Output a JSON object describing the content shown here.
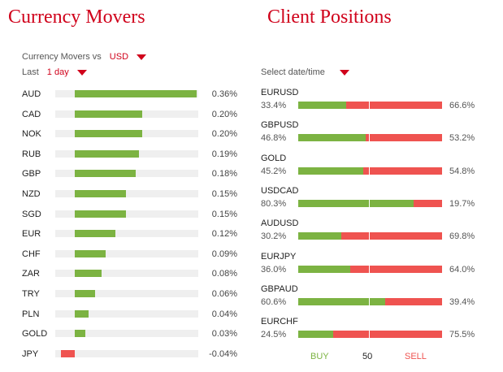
{
  "movers": {
    "title": "Currency Movers",
    "vs_label": "Currency Movers vs",
    "vs_value": "USD",
    "period_label": "Last",
    "period_value": "1 day",
    "rows": [
      {
        "currency": "AUD",
        "value": 0.36,
        "label": "0.36%"
      },
      {
        "currency": "CAD",
        "value": 0.2,
        "label": "0.20%"
      },
      {
        "currency": "NOK",
        "value": 0.2,
        "label": "0.20%"
      },
      {
        "currency": "RUB",
        "value": 0.19,
        "label": "0.19%"
      },
      {
        "currency": "GBP",
        "value": 0.18,
        "label": "0.18%"
      },
      {
        "currency": "NZD",
        "value": 0.15,
        "label": "0.15%"
      },
      {
        "currency": "SGD",
        "value": 0.15,
        "label": "0.15%"
      },
      {
        "currency": "EUR",
        "value": 0.12,
        "label": "0.12%"
      },
      {
        "currency": "CHF",
        "value": 0.09,
        "label": "0.09%"
      },
      {
        "currency": "ZAR",
        "value": 0.08,
        "label": "0.08%"
      },
      {
        "currency": "TRY",
        "value": 0.06,
        "label": "0.06%"
      },
      {
        "currency": "PLN",
        "value": 0.04,
        "label": "0.04%"
      },
      {
        "currency": "GOLD",
        "value": 0.03,
        "label": "0.03%"
      },
      {
        "currency": "JPY",
        "value": -0.04,
        "label": "-0.04%"
      }
    ]
  },
  "positions": {
    "title": "Client Positions",
    "select_label": "Select date/time",
    "rows": [
      {
        "pair": "EURUSD",
        "buy": 33.4,
        "sell": 66.6,
        "buy_label": "33.4%",
        "sell_label": "66.6%"
      },
      {
        "pair": "GBPUSD",
        "buy": 46.8,
        "sell": 53.2,
        "buy_label": "46.8%",
        "sell_label": "53.2%"
      },
      {
        "pair": "GOLD",
        "buy": 45.2,
        "sell": 54.8,
        "buy_label": "45.2%",
        "sell_label": "54.8%"
      },
      {
        "pair": "USDCAD",
        "buy": 80.3,
        "sell": 19.7,
        "buy_label": "80.3%",
        "sell_label": "19.7%"
      },
      {
        "pair": "AUDUSD",
        "buy": 30.2,
        "sell": 69.8,
        "buy_label": "30.2%",
        "sell_label": "69.8%"
      },
      {
        "pair": "EURJPY",
        "buy": 36.0,
        "sell": 64.0,
        "buy_label": "36.0%",
        "sell_label": "64.0%"
      },
      {
        "pair": "GBPAUD",
        "buy": 60.6,
        "sell": 39.4,
        "buy_label": "60.6%",
        "sell_label": "39.4%"
      },
      {
        "pair": "EURCHF",
        "buy": 24.5,
        "sell": 75.5,
        "buy_label": "24.5%",
        "sell_label": "75.5%"
      }
    ],
    "legend": {
      "buy": "BUY",
      "mid": "50",
      "sell": "SELL"
    }
  },
  "colors": {
    "accent": "#d0021b",
    "positive": "#7cb342",
    "negative": "#ef5350",
    "track": "#efefef"
  }
}
